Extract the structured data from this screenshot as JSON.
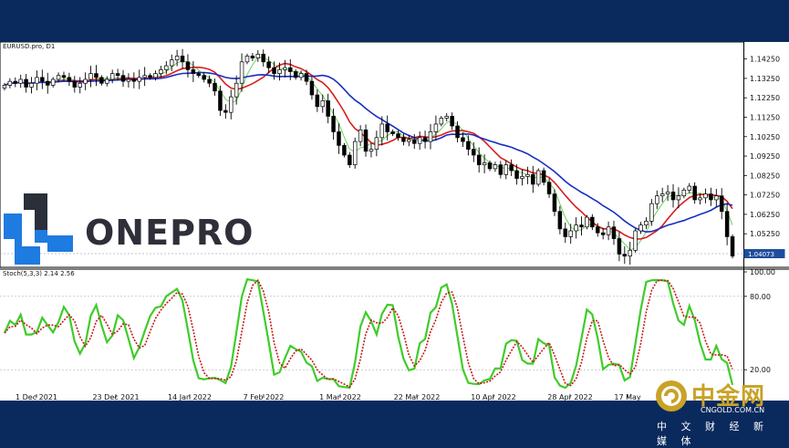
{
  "chart_data": [
    {
      "type": "candlestick",
      "symbol_label": "EURUSD.pro, D1",
      "y_ticks": [
        "1.14250",
        "1.13250",
        "1.12250",
        "1.11250",
        "1.10250",
        "1.09250",
        "1.08250",
        "1.07250",
        "1.06250",
        "1.05250",
        "1.04250"
      ],
      "y_range": [
        1.0385,
        1.1475
      ],
      "current_price_label": "1.04073",
      "x_ticks": [
        "1 Dec 2021",
        "23 Dec 2021",
        "14 Jan 2022",
        "7 Feb 2022",
        "1 Mar 2022",
        "22 Mar 2022",
        "10 Apr 2022",
        "28 Apr 2022",
        "17 May"
      ],
      "close_series": [
        1.129,
        1.131,
        1.13,
        1.132,
        1.128,
        1.13,
        1.133,
        1.131,
        1.129,
        1.132,
        1.134,
        1.133,
        1.131,
        1.128,
        1.13,
        1.132,
        1.135,
        1.133,
        1.13,
        1.132,
        1.135,
        1.134,
        1.131,
        1.132,
        1.131,
        1.133,
        1.134,
        1.133,
        1.135,
        1.137,
        1.139,
        1.142,
        1.144,
        1.141,
        1.137,
        1.135,
        1.134,
        1.132,
        1.13,
        1.126,
        1.116,
        1.115,
        1.123,
        1.13,
        1.141,
        1.144,
        1.143,
        1.145,
        1.141,
        1.138,
        1.135,
        1.137,
        1.138,
        1.136,
        1.133,
        1.135,
        1.131,
        1.124,
        1.118,
        1.121,
        1.113,
        1.105,
        1.098,
        1.093,
        1.088,
        1.1,
        1.106,
        1.095,
        1.096,
        1.102,
        1.109,
        1.105,
        1.104,
        1.102,
        1.1,
        1.101,
        1.099,
        1.102,
        1.1,
        1.105,
        1.109,
        1.112,
        1.113,
        1.108,
        1.102,
        1.1,
        1.096,
        1.093,
        1.088,
        1.089,
        1.086,
        1.088,
        1.083,
        1.088,
        1.085,
        1.081,
        1.082,
        1.083,
        1.078,
        1.085,
        1.079,
        1.073,
        1.064,
        1.055,
        1.051,
        1.054,
        1.057,
        1.056,
        1.061,
        1.056,
        1.053,
        1.052,
        1.056,
        1.05,
        1.042,
        1.041,
        1.044,
        1.054,
        1.057,
        1.059,
        1.068,
        1.072,
        1.073,
        1.074,
        1.07,
        1.072,
        1.075,
        1.077,
        1.07,
        1.071,
        1.073,
        1.07,
        1.072,
        1.064,
        1.051,
        1.041
      ],
      "moving_averages": [
        {
          "name": "",
          "period": 4,
          "color": "#6cd35a"
        },
        {
          "name": "",
          "period": 9,
          "color": "#d81e1e"
        },
        {
          "name": "",
          "period": 18,
          "color": "#1a2fbf"
        }
      ]
    },
    {
      "type": "line",
      "indicator_label": "Stoch(5,3,3) 2.14 2.56",
      "y_ticks": [
        "100.00",
        "80.00",
        "20.00"
      ],
      "y_range": [
        0,
        100
      ],
      "series": [
        {
          "name": "",
          "color": "#3fcc2a",
          "style": "solid"
        },
        {
          "name": "",
          "color": "#c41a1a",
          "style": "dotted"
        }
      ]
    }
  ],
  "watermark": {
    "brand": "ONEPRO",
    "colors": {
      "blue": "#1e7be0",
      "dark": "#2f2f3a"
    }
  },
  "site_logo": {
    "name": "中金网",
    "domain": "CNGOLD.COM.CN",
    "tagline": "中 文 财 经 新 媒 体",
    "color": "#c9a227"
  }
}
